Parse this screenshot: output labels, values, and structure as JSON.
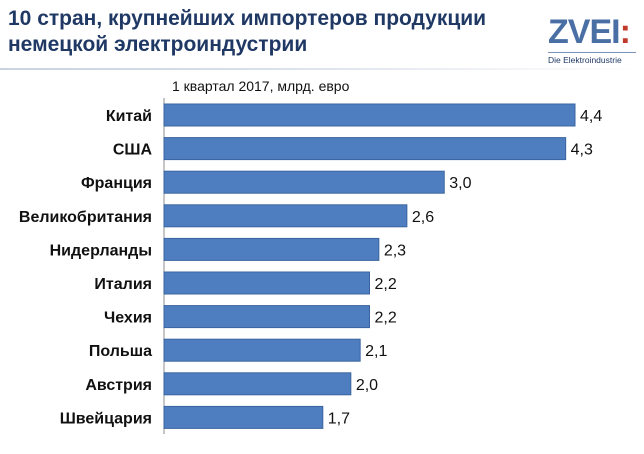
{
  "header": {
    "title_line1": "10 стран, крупнейших импортеров продукции",
    "title_line2": "немецкой электроиндустрии"
  },
  "logo": {
    "word_main": "ZVEI",
    "word_accent": ":",
    "tagline": "Die Elektroindustrie",
    "accent_color": "#c0392b",
    "brand_color": "#4a6fa5"
  },
  "chart_data": {
    "type": "bar",
    "orientation": "horizontal",
    "subtitle": "1 квартал 2017, млрд. евро",
    "categories": [
      "Китай",
      "США",
      "Франция",
      "Великобритания",
      "Нидерланды",
      "Италия",
      "Чехия",
      "Польша",
      "Австрия",
      "Швейцария"
    ],
    "values": [
      4.4,
      4.3,
      3.0,
      2.6,
      2.3,
      2.2,
      2.2,
      2.1,
      2.0,
      1.7
    ],
    "value_labels": [
      "4,4",
      "4,3",
      "3,0",
      "2,6",
      "2,3",
      "2,2",
      "2,2",
      "2,1",
      "2,0",
      "1,7"
    ],
    "bar_color": "#4f7ec0",
    "bar_edge_color": "#3a64a0",
    "xlim": [
      0,
      4.4
    ],
    "grid": false,
    "legend": "none"
  }
}
